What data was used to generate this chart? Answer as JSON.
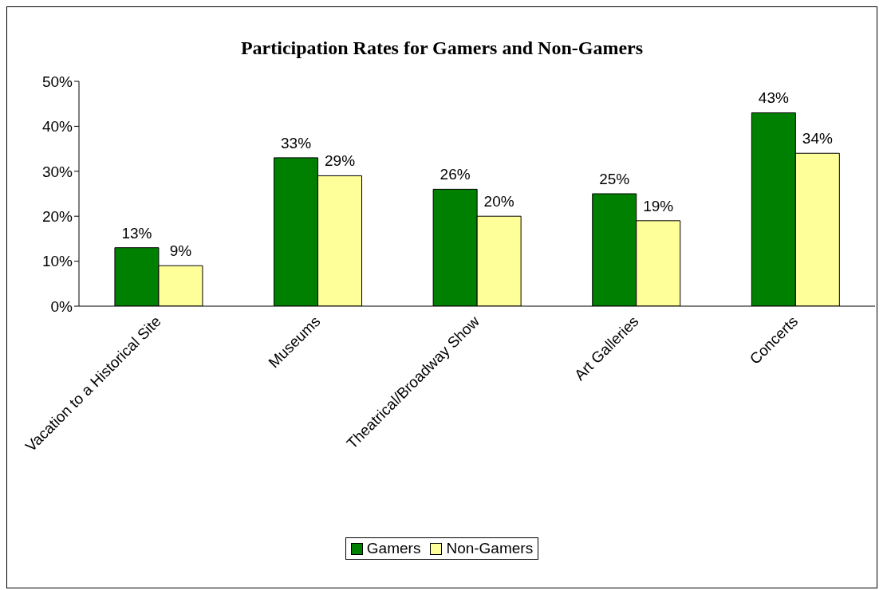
{
  "chart_data": {
    "type": "bar",
    "title": "Participation Rates for Gamers and Non-Gamers",
    "categories": [
      "Vacation to a Historical Site",
      "Museums",
      "Theatrical/Broadway Show",
      "Art Galleries",
      "Concerts"
    ],
    "series": [
      {
        "name": "Gamers",
        "color": "#008000",
        "values": [
          13,
          33,
          26,
          25,
          43
        ],
        "value_labels": [
          "13%",
          "33%",
          "26%",
          "25%",
          "43%"
        ]
      },
      {
        "name": "Non-Gamers",
        "color": "#ffff99",
        "values": [
          9,
          29,
          20,
          19,
          34
        ],
        "value_labels": [
          "9%",
          "29%",
          "20%",
          "19%",
          "34%"
        ]
      }
    ],
    "ylim": [
      0,
      50
    ],
    "yticks": [
      {
        "value": 0,
        "label": "0%"
      },
      {
        "value": 10,
        "label": "10%"
      },
      {
        "value": 20,
        "label": "20%"
      },
      {
        "value": 30,
        "label": "30%"
      },
      {
        "value": 40,
        "label": "40%"
      },
      {
        "value": 50,
        "label": "50%"
      }
    ],
    "grid": false,
    "legend": "bottom"
  }
}
